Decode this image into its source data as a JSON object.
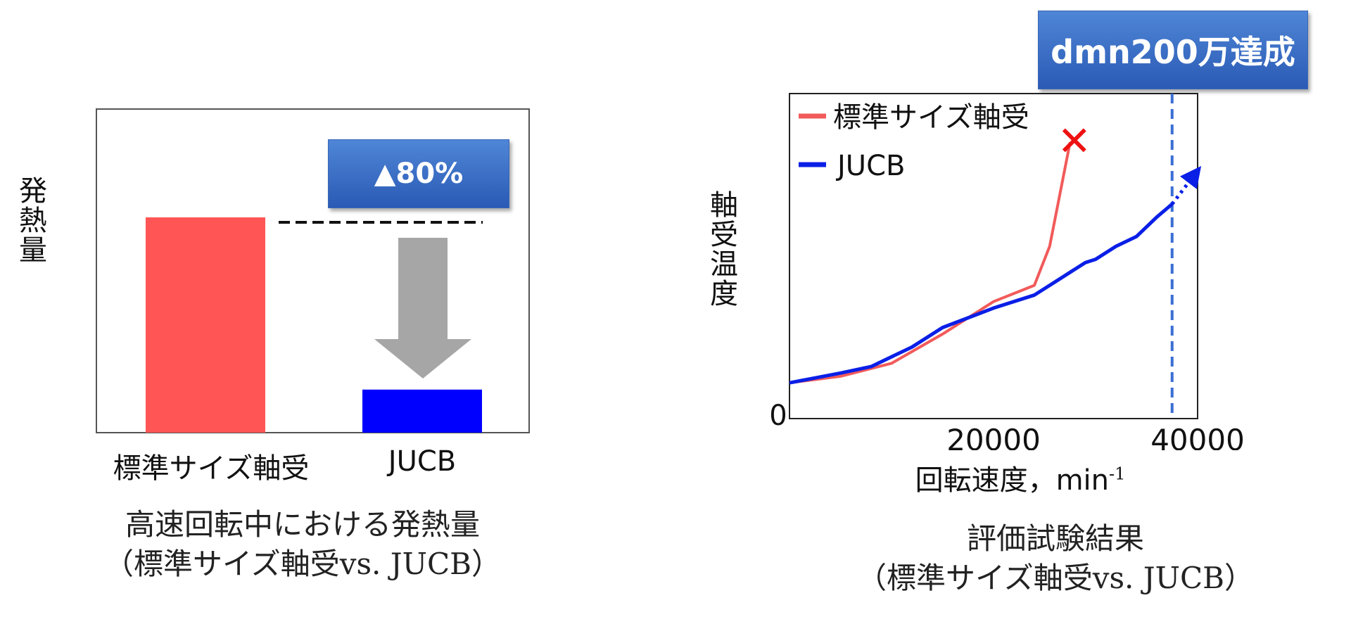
{
  "chart_data": [
    {
      "type": "bar",
      "ylabel": "発熱量",
      "categories": [
        "標準サイズ軸受",
        "JUCB"
      ],
      "values": [
        100,
        20
      ],
      "colors": [
        "#ff5555",
        "#0000ff"
      ],
      "annotation": "▲80%",
      "caption_line1": "高速回転中における発熱量",
      "caption_line2": "（標準サイズ軸受vs. JUCB）"
    },
    {
      "type": "line",
      "xlabel": "回転速度，min",
      "xlabel_sup": "-1",
      "ylabel": "軸受温度",
      "xlim": [
        0,
        40000
      ],
      "ylim": [
        0,
        100
      ],
      "x_ticks": [
        "20000",
        "40000"
      ],
      "y_tick_origin": "0",
      "series": [
        {
          "name": "標準サイズ軸受",
          "color": "#f25a5a",
          "points": [
            [
              0,
              11
            ],
            [
              5000,
              13
            ],
            [
              10000,
              17
            ],
            [
              15000,
              26
            ],
            [
              20000,
              36
            ],
            [
              24000,
              41
            ],
            [
              25500,
              53
            ],
            [
              27500,
              85
            ]
          ],
          "end_marker": "✕"
        },
        {
          "name": "JUCB",
          "color": "#0a1fe6",
          "points": [
            [
              0,
              11
            ],
            [
              5000,
              14
            ],
            [
              8000,
              16
            ],
            [
              12000,
              22
            ],
            [
              15000,
              28
            ],
            [
              20000,
              34
            ],
            [
              24000,
              38
            ],
            [
              26000,
              42
            ],
            [
              29000,
              48
            ],
            [
              30000,
              49
            ],
            [
              32000,
              53
            ],
            [
              34000,
              56
            ],
            [
              36000,
              62
            ],
            [
              37500,
              66
            ]
          ],
          "projection": [
            [
              37500,
              66
            ],
            [
              40000,
              76
            ]
          ]
        }
      ],
      "target_x": 37500,
      "target_label": "dmn200万達成",
      "caption_line1": "評価試験結果",
      "caption_line2": "（標準サイズ軸受vs. JUCB）"
    }
  ]
}
